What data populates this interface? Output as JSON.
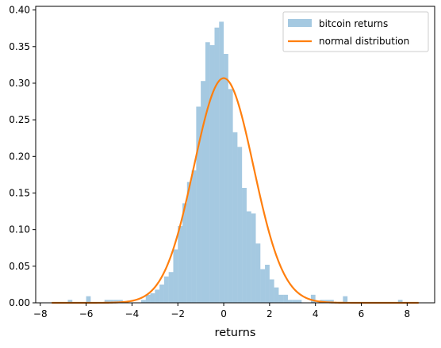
{
  "chart_data": {
    "type": "histogram",
    "title": "",
    "xlabel": "returns",
    "ylabel": "",
    "xlim": [
      -8.2,
      9.2
    ],
    "ylim": [
      0,
      0.405
    ],
    "x_ticks": [
      -8,
      -6,
      -4,
      -2,
      0,
      2,
      4,
      6,
      8
    ],
    "y_ticks": [
      0.0,
      0.05,
      0.1,
      0.15,
      0.2,
      0.25,
      0.3,
      0.35,
      0.4
    ],
    "x_tick_labels": [
      "−8",
      "−6",
      "−4",
      "−2",
      "0",
      "2",
      "4",
      "6",
      "8"
    ],
    "y_tick_labels": [
      "0.00",
      "0.05",
      "0.10",
      "0.15",
      "0.20",
      "0.25",
      "0.30",
      "0.35",
      "0.40"
    ],
    "grid": false,
    "legend_position": "top-right",
    "bin_width": 0.2,
    "series": [
      {
        "name": "bitcoin returns",
        "kind": "histogram",
        "color": "#1f77b4",
        "alpha": 0.4,
        "bin_starts": [
          -6.8,
          -6.0,
          -5.2,
          -5.0,
          -4.8,
          -4.6,
          -3.6,
          -3.4,
          -3.2,
          -3.0,
          -2.8,
          -2.6,
          -2.4,
          -2.2,
          -2.0,
          -1.8,
          -1.6,
          -1.4,
          -1.2,
          -1.0,
          -0.8,
          -0.6,
          -0.4,
          -0.2,
          0.0,
          0.2,
          0.4,
          0.6,
          0.8,
          1.0,
          1.2,
          1.4,
          1.6,
          1.8,
          2.0,
          2.2,
          2.4,
          2.6,
          2.8,
          3.0,
          3.2,
          3.8,
          4.2,
          4.4,
          4.6,
          5.2,
          7.6
        ],
        "densities": [
          0.004,
          0.009,
          0.004,
          0.004,
          0.004,
          0.004,
          0.004,
          0.011,
          0.013,
          0.018,
          0.025,
          0.036,
          0.042,
          0.073,
          0.105,
          0.136,
          0.165,
          0.181,
          0.268,
          0.303,
          0.356,
          0.352,
          0.376,
          0.384,
          0.34,
          0.292,
          0.233,
          0.213,
          0.157,
          0.125,
          0.122,
          0.081,
          0.046,
          0.052,
          0.032,
          0.021,
          0.011,
          0.011,
          0.004,
          0.004,
          0.004,
          0.011,
          0.004,
          0.004,
          0.004,
          0.009,
          0.004
        ]
      },
      {
        "name": "normal distribution",
        "kind": "line",
        "color": "#ff7f0e",
        "mean": 0.0,
        "std": 1.3,
        "x_range": [
          -7.5,
          8.5
        ]
      }
    ]
  }
}
